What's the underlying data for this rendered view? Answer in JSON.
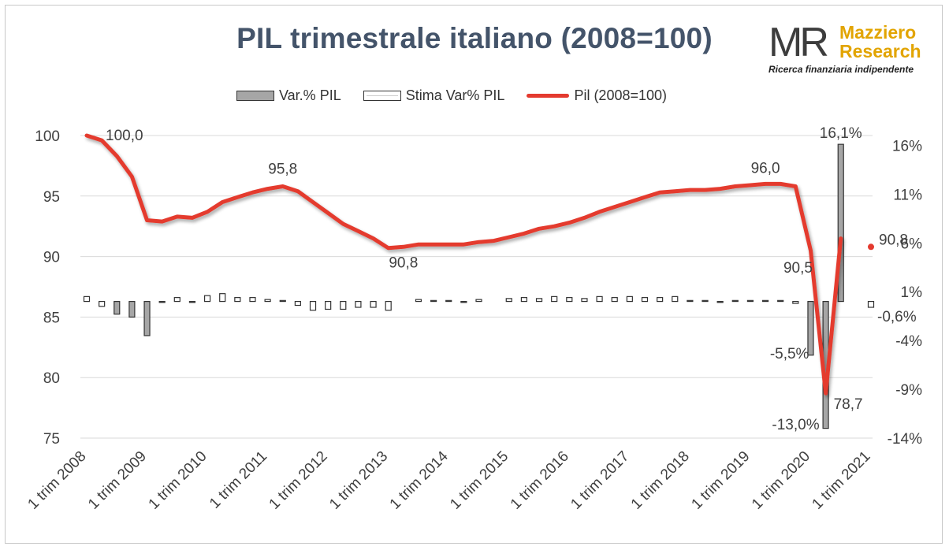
{
  "title": "PIL trimestrale italiano (2008=100)",
  "logo": {
    "mark": "MR",
    "name_line1": "Mazziero",
    "name_line2": "Research",
    "tagline": "Ricerca finanziaria indipendente"
  },
  "legend": [
    {
      "key": "bar",
      "label": "Var.% PIL"
    },
    {
      "key": "estimate",
      "label": "Stima Var% PIL"
    },
    {
      "key": "line",
      "label": "Pil (2008=100)"
    }
  ],
  "colors": {
    "line": "#e43a2f",
    "bar_fill": "#a6a6a6",
    "estimate_fill": "#ffffff",
    "bar_border": "#333333",
    "grid": "#d9d9d9",
    "title": "#44546a",
    "logo_accent": "#e2a400"
  },
  "chart_data": {
    "type": "bar+line",
    "title": "PIL trimestrale italiano (2008=100)",
    "quarters_count": 53,
    "first_quarter": "1 trim 2008",
    "x_tick_labels": [
      "1 trim 2008",
      "1 trim 2009",
      "1 trim 2010",
      "1 trim 2011",
      "1 trim 2012",
      "1 trim 2013",
      "1 trim 2014",
      "1 trim 2015",
      "1 trim 2016",
      "1 trim 2017",
      "1 trim 2018",
      "1 trim 2019",
      "1 trim 2020",
      "1 trim 2021"
    ],
    "y_left": {
      "min": 75,
      "max": 100,
      "ticks": [
        75,
        80,
        85,
        90,
        95,
        100
      ]
    },
    "y_right": {
      "min": -14,
      "max": 17,
      "ticks": [
        "-14%",
        "-9%",
        "-4%",
        "1%",
        "6%",
        "11%",
        "16%"
      ],
      "tick_values": [
        -14,
        -9,
        -4,
        1,
        6,
        11,
        16
      ]
    },
    "grid": "horizontal",
    "legend_position": "top",
    "series": [
      {
        "name": "Pil (2008=100)",
        "kind": "line",
        "axis": "left",
        "values": [
          100.0,
          99.6,
          98.3,
          96.6,
          93.0,
          92.9,
          93.3,
          93.2,
          93.7,
          94.5,
          94.9,
          95.3,
          95.6,
          95.8,
          95.4,
          94.5,
          93.6,
          92.7,
          92.1,
          91.5,
          90.7,
          90.8,
          91.0,
          91.0,
          91.0,
          91.0,
          91.2,
          91.3,
          91.6,
          91.9,
          92.3,
          92.5,
          92.8,
          93.2,
          93.7,
          94.1,
          94.5,
          94.9,
          95.3,
          95.4,
          95.5,
          95.5,
          95.6,
          95.8,
          95.9,
          96.0,
          96.0,
          95.8,
          90.5,
          78.7,
          91.5
        ],
        "point_labels": [
          {
            "index": 0,
            "text": "100,0"
          },
          {
            "index": 13,
            "text": "95,8"
          },
          {
            "index": 21,
            "text": "90,8"
          },
          {
            "index": 45,
            "text": "96,0"
          },
          {
            "index": 48,
            "text": "90,5"
          },
          {
            "index": 49,
            "text": "78,7"
          }
        ]
      },
      {
        "name": "Pil (2008=100)",
        "kind": "estimate-point",
        "axis": "left",
        "index": 52,
        "value": 90.8,
        "label": "90,8"
      },
      {
        "name": "Var.% PIL",
        "kind": "bar",
        "axis": "right",
        "values": [
          0.5,
          -0.5,
          -1.3,
          -1.6,
          -3.5,
          -0.1,
          0.4,
          -0.1,
          0.6,
          0.8,
          0.4,
          0.4,
          0.2,
          0.1,
          -0.4,
          -0.9,
          -0.8,
          -0.8,
          -0.6,
          -0.6,
          -0.9,
          null,
          0.2,
          0.1,
          0.1,
          -0.1,
          0.2,
          null,
          0.3,
          0.4,
          0.3,
          0.5,
          0.4,
          0.3,
          0.5,
          0.4,
          0.5,
          0.4,
          0.4,
          0.5,
          0.1,
          0.1,
          -0.1,
          0.1,
          0.1,
          0.1,
          0.1,
          -0.2,
          -5.5,
          -13.0,
          16.1,
          null,
          -0.6
        ],
        "point_labels": [
          {
            "index": 48,
            "text": "-5,5%"
          },
          {
            "index": 49,
            "text": "-13,0%"
          },
          {
            "index": 50,
            "text": "16,1%"
          },
          {
            "index": 52,
            "text": "-0,6%"
          }
        ]
      }
    ]
  }
}
